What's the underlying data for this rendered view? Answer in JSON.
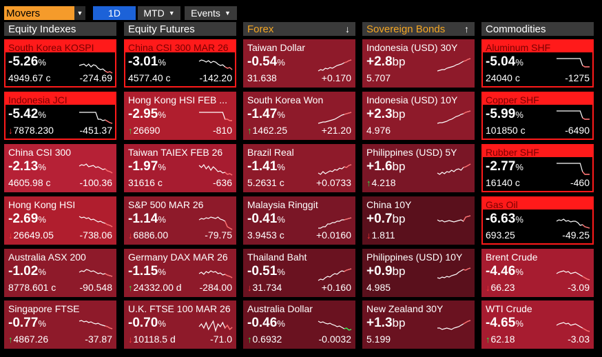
{
  "toolbar": {
    "movers_label": "Movers",
    "period_active": "1D",
    "period_mtd": "MTD",
    "events_label": "Events"
  },
  "colors": {
    "highlight_border": "#ff1a1a",
    "up": "#2ee84a",
    "down": "#ff3a3a",
    "active_button": "#1c62d8",
    "movers_bg": "#f59b2b"
  },
  "columns": [
    {
      "title": "Equity Indexes",
      "sortable": false,
      "tiles": [
        {
          "name": "South Korea KOSPI",
          "change": "-5.26",
          "unit": "%",
          "last": "4949.67 c",
          "net": "-274.69",
          "dir": "",
          "highlight": true,
          "bg": "#b01e2e",
          "spark": [
            14,
            13,
            12,
            15,
            12,
            16,
            13,
            14,
            18,
            20,
            19,
            22,
            24,
            23,
            25
          ]
        },
        {
          "name": "Indonesia JCI",
          "change": "-5.42",
          "unit": "%",
          "last": "7878.230",
          "net": "-451.37",
          "dir": "down",
          "highlight": true,
          "bg": "#b01e2e",
          "spark": [
            6,
            6,
            6,
            6,
            6,
            6,
            6,
            6,
            16,
            16,
            18,
            17,
            19,
            21,
            22
          ]
        },
        {
          "name": "China CSI 300",
          "change": "-2.13",
          "unit": "%",
          "last": "4605.98 c",
          "net": "-100.36",
          "dir": "",
          "highlight": false,
          "bg": "#b62136",
          "spark": [
            8,
            6,
            7,
            5,
            9,
            8,
            7,
            10,
            9,
            11,
            13,
            12,
            15,
            16,
            18
          ]
        },
        {
          "name": "Hong Kong HSI",
          "change": "-2.69",
          "unit": "%",
          "last": "26649.05",
          "net": "-738.06",
          "dir": "down",
          "highlight": false,
          "bg": "#b01e2e",
          "spark": [
            5,
            7,
            6,
            8,
            7,
            10,
            9,
            11,
            13,
            12,
            14,
            15,
            17,
            18,
            20
          ]
        },
        {
          "name": "Australia ASX 200",
          "change": "-1.02",
          "unit": "%",
          "last": "8778.601 c",
          "net": "-90.548",
          "dir": "",
          "highlight": false,
          "bg": "#8e1a2a",
          "spark": [
            10,
            8,
            9,
            6,
            7,
            9,
            8,
            10,
            12,
            11,
            13,
            12,
            14,
            15,
            16
          ]
        },
        {
          "name": "Singapore FTSE",
          "change": "-0.77",
          "unit": "%",
          "last": "4867.26",
          "net": "-37.87",
          "dir": "up",
          "highlight": false,
          "bg": "#8e1a2a",
          "spark": [
            6,
            5,
            7,
            6,
            8,
            7,
            9,
            10,
            9,
            11,
            12,
            13,
            14,
            16,
            17
          ]
        }
      ]
    },
    {
      "title": "Equity Futures",
      "sortable": false,
      "tiles": [
        {
          "name": "China CSI 300 MAR 26",
          "change": "-3.01",
          "unit": "%",
          "last": "4577.40 c",
          "net": "-142.20",
          "dir": "",
          "highlight": true,
          "bg": "#b01e2e",
          "spark": [
            8,
            6,
            7,
            9,
            7,
            10,
            8,
            9,
            12,
            14,
            13,
            16,
            18,
            17,
            20
          ]
        },
        {
          "name": "Hong Kong HSI FEB ...",
          "change": "-2.95",
          "unit": "%",
          "last": "26690",
          "net": "-810",
          "dir": "up",
          "highlight": false,
          "bg": "#b01e2e",
          "spark": [
            6,
            6,
            6,
            6,
            6,
            6,
            6,
            6,
            6,
            6,
            6,
            16,
            16,
            18,
            18
          ]
        },
        {
          "name": "Taiwan TAIEX FEB 26",
          "change": "-1.97",
          "unit": "%",
          "last": "31616 c",
          "net": "-636",
          "dir": "",
          "highlight": false,
          "bg": "#a71c30",
          "spark": [
            7,
            10,
            6,
            12,
            8,
            14,
            9,
            12,
            16,
            15,
            18,
            17,
            20,
            19,
            21
          ]
        },
        {
          "name": "S&P 500 MAR 26",
          "change": "-1.14",
          "unit": "%",
          "last": "6886.00",
          "net": "-79.75",
          "dir": "down",
          "highlight": false,
          "bg": "#8e1a2a",
          "spark": [
            10,
            8,
            9,
            7,
            8,
            6,
            7,
            8,
            6,
            9,
            10,
            12,
            20,
            22,
            24
          ]
        },
        {
          "name": "Germany DAX MAR 26",
          "change": "-1.15",
          "unit": "%",
          "last": "24332.00 d",
          "net": "-284.00",
          "dir": "up",
          "highlight": false,
          "bg": "#8e1a2a",
          "spark": [
            12,
            10,
            13,
            9,
            11,
            8,
            10,
            9,
            12,
            11,
            14,
            13,
            15,
            16,
            18
          ]
        },
        {
          "name": "U.K. FTSE 100 MAR 26",
          "change": "-0.70",
          "unit": "%",
          "last": "10118.5 d",
          "net": "-71.0",
          "dir": "down",
          "highlight": false,
          "bg": "#8e1a2a",
          "spark": [
            14,
            10,
            16,
            8,
            18,
            12,
            6,
            20,
            10,
            14,
            8,
            16,
            12,
            18,
            15
          ]
        }
      ]
    },
    {
      "title": "Forex",
      "sortable": true,
      "sort_icon": "↓",
      "tiles": [
        {
          "name": "Taiwan Dollar",
          "change": "-0.54",
          "unit": "%",
          "last": "31.638",
          "net": "+0.170",
          "dir": "",
          "highlight": false,
          "bg": "#8e1a2a",
          "spark": [
            22,
            20,
            21,
            18,
            19,
            17,
            18,
            16,
            14,
            13,
            12,
            10,
            9,
            7,
            6
          ]
        },
        {
          "name": "South Korea Won",
          "change": "-1.47",
          "unit": "%",
          "last": "1462.25",
          "net": "+21.20",
          "dir": "up",
          "highlight": false,
          "bg": "#8e1a2a",
          "spark": [
            22,
            21,
            20,
            20,
            19,
            18,
            17,
            16,
            14,
            12,
            10,
            9,
            8,
            7,
            6
          ]
        },
        {
          "name": "Brazil Real",
          "change": "-1.41",
          "unit": "%",
          "last": "5.2631 c",
          "net": "+0.0733",
          "dir": "",
          "highlight": false,
          "bg": "#8e1a2a",
          "spark": [
            18,
            20,
            16,
            19,
            17,
            15,
            16,
            13,
            14,
            11,
            12,
            9,
            10,
            7,
            6
          ]
        },
        {
          "name": "Malaysia Ringgit",
          "change": "-0.41",
          "unit": "%",
          "last": "3.9453 c",
          "net": "+0.0160",
          "dir": "",
          "highlight": false,
          "bg": "#7a1626",
          "spark": [
            22,
            22,
            20,
            20,
            16,
            16,
            14,
            14,
            12,
            12,
            10,
            10,
            9,
            8,
            7
          ]
        },
        {
          "name": "Thailand Baht",
          "change": "-0.51",
          "unit": "%",
          "last": "31.734",
          "net": "+0.160",
          "dir": "down",
          "highlight": false,
          "bg": "#6a1220",
          "spark": [
            22,
            20,
            21,
            18,
            16,
            17,
            14,
            12,
            13,
            10,
            8,
            9,
            7,
            6,
            5
          ]
        },
        {
          "name": "Australia Dollar",
          "change": "-0.46",
          "unit": "%",
          "last": "0.6932",
          "net": "-0.0032",
          "dir": "up",
          "highlight": false,
          "bg": "#6a1220",
          "spark": [
            6,
            8,
            7,
            9,
            10,
            9,
            11,
            12,
            14,
            13,
            15,
            17,
            16,
            19,
            18
          ]
        }
      ]
    },
    {
      "title": "Sovereign Bonds",
      "sortable": true,
      "sort_icon": "↑",
      "tiles": [
        {
          "name": "Indonesia (USD) 30Y",
          "change": "+2.8",
          "unit": "bp",
          "last": "5.707",
          "net": "",
          "dir": "",
          "highlight": false,
          "bg": "#8e1a2a",
          "spark": [
            22,
            21,
            20,
            20,
            18,
            17,
            16,
            15,
            13,
            12,
            10,
            8,
            7,
            5,
            4
          ]
        },
        {
          "name": "Indonesia (USD) 10Y",
          "change": "+2.3",
          "unit": "bp",
          "last": "4.976",
          "net": "",
          "dir": "",
          "highlight": false,
          "bg": "#8e1a2a",
          "spark": [
            22,
            21,
            21,
            20,
            19,
            17,
            16,
            14,
            12,
            11,
            9,
            8,
            6,
            5,
            4
          ]
        },
        {
          "name": "Philippines (USD) 5Y",
          "change": "+1.6",
          "unit": "bp",
          "last": "4.218",
          "net": "",
          "dir": "up",
          "highlight": false,
          "bg": "#7a1626",
          "spark": [
            18,
            20,
            17,
            19,
            16,
            17,
            14,
            16,
            13,
            12,
            14,
            10,
            9,
            7,
            5
          ]
        },
        {
          "name": "China 10Y",
          "change": "+0.7",
          "unit": "bp",
          "last": "1.811",
          "net": "",
          "dir": "down",
          "highlight": false,
          "bg": "#5a101c",
          "spark": [
            10,
            12,
            11,
            13,
            12,
            11,
            12,
            13,
            12,
            11,
            10,
            12,
            6,
            5,
            4
          ]
        },
        {
          "name": "Philippines (USD) 10Y",
          "change": "+0.9",
          "unit": "bp",
          "last": "4.985",
          "net": "",
          "dir": "",
          "highlight": false,
          "bg": "#5a101c",
          "spark": [
            18,
            19,
            17,
            18,
            16,
            17,
            15,
            14,
            13,
            10,
            8,
            6,
            7,
            5,
            4
          ]
        },
        {
          "name": "New Zealand 30Y",
          "change": "+1.3",
          "unit": "bp",
          "last": "5.199",
          "net": "",
          "dir": "",
          "highlight": false,
          "bg": "#6a1220",
          "spark": [
            16,
            16,
            18,
            17,
            16,
            17,
            18,
            16,
            15,
            14,
            12,
            10,
            8,
            6,
            5
          ]
        }
      ]
    },
    {
      "title": "Commodities",
      "sortable": false,
      "tiles": [
        {
          "name": "Aluminum SHF",
          "change": "-5.04",
          "unit": "%",
          "last": "24040 c",
          "net": "-1275",
          "dir": "",
          "highlight": true,
          "bg": "#b01e2e",
          "spark": [
            4,
            4,
            4,
            4,
            4,
            4,
            4,
            4,
            4,
            4,
            4,
            14,
            16,
            16,
            16
          ]
        },
        {
          "name": "Copper SHF",
          "change": "-5.99",
          "unit": "%",
          "last": "101850 c",
          "net": "-6490",
          "dir": "",
          "highlight": true,
          "bg": "#b01e2e",
          "spark": [
            4,
            4,
            4,
            4,
            4,
            4,
            4,
            4,
            4,
            4,
            4,
            14,
            16,
            16,
            16
          ]
        },
        {
          "name": "Rubber SHF",
          "change": "-2.77",
          "unit": "%",
          "last": "16140 c",
          "net": "-460",
          "dir": "",
          "highlight": true,
          "bg": "#b01e2e",
          "spark": [
            4,
            4,
            4,
            4,
            4,
            4,
            4,
            4,
            4,
            4,
            4,
            16,
            20,
            20,
            20
          ]
        },
        {
          "name": "Gas Oil",
          "change": "-6.63",
          "unit": "%",
          "last": "693.25",
          "net": "-49.25",
          "dir": "",
          "highlight": true,
          "bg": "#b01e2e",
          "spark": [
            12,
            10,
            11,
            9,
            12,
            11,
            13,
            12,
            12,
            14,
            18,
            17,
            20,
            21,
            22
          ]
        },
        {
          "name": "Brent Crude",
          "change": "-4.46",
          "unit": "%",
          "last": "66.23",
          "net": "-3.09",
          "dir": "down",
          "highlight": false,
          "bg": "#a71c30",
          "spark": [
            12,
            10,
            9,
            8,
            10,
            9,
            12,
            11,
            10,
            12,
            14,
            16,
            18,
            20,
            21
          ]
        },
        {
          "name": "WTI Crude",
          "change": "-4.65",
          "unit": "%",
          "last": "62.18",
          "net": "-3.03",
          "dir": "up",
          "highlight": false,
          "bg": "#a71c30",
          "spark": [
            12,
            10,
            9,
            8,
            10,
            9,
            12,
            11,
            10,
            12,
            14,
            16,
            18,
            20,
            21
          ]
        }
      ]
    }
  ]
}
